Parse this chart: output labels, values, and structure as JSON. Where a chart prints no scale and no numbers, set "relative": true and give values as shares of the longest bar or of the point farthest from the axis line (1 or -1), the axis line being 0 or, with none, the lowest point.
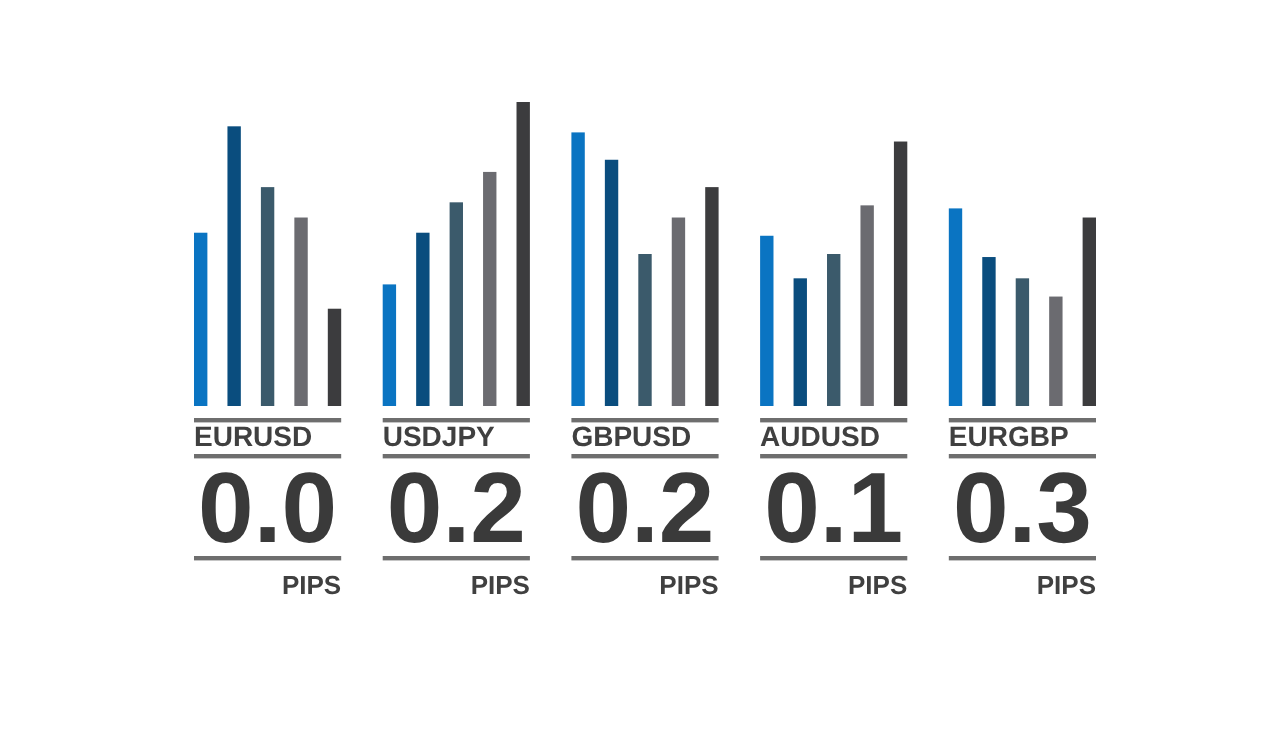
{
  "chart_data": {
    "type": "bar",
    "relative": true,
    "categories": [
      "EURUSD",
      "USDJPY",
      "GBPUSD",
      "AUDUSD",
      "EURGBP"
    ],
    "series": [
      {
        "color": "#0a74c2",
        "values": [
          0.57,
          0.4,
          0.9,
          0.56,
          0.65
        ]
      },
      {
        "color": "#0a4d7e",
        "values": [
          0.92,
          0.57,
          0.81,
          0.42,
          0.49
        ]
      },
      {
        "color": "#3b5a6b",
        "values": [
          0.72,
          0.67,
          0.5,
          0.5,
          0.42
        ]
      },
      {
        "color": "#6b6b70",
        "values": [
          0.62,
          0.77,
          0.62,
          0.66,
          0.36
        ]
      },
      {
        "color": "#3c3c3e",
        "values": [
          0.32,
          1,
          0.72,
          0.87,
          0.62
        ]
      }
    ],
    "annotations": [
      "0.0",
      "PIPS",
      "0.2",
      "PIPS",
      "0.2",
      "PIPS",
      "0.1",
      "PIPS",
      "0.3",
      "PIPS"
    ]
  }
}
